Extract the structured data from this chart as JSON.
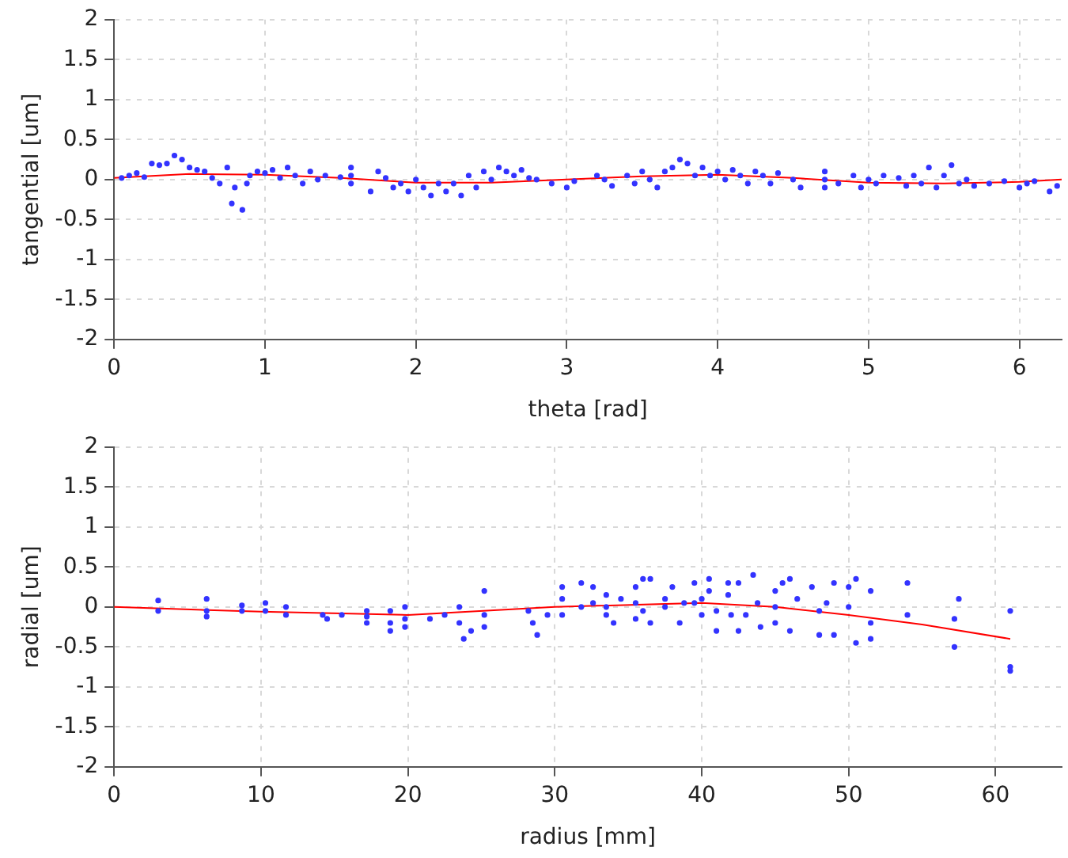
{
  "chart_data": [
    {
      "type": "scatter",
      "xlabel": "theta [rad]",
      "ylabel": "tangential [um]",
      "xlim": [
        0,
        6.28
      ],
      "xticks": [
        0,
        1,
        2,
        3,
        4,
        5,
        6
      ],
      "ylim": [
        -2,
        2
      ],
      "yticks": [
        -2,
        -1.5,
        -1,
        -0.5,
        0,
        0.5,
        1,
        1.5,
        2
      ],
      "grid": true,
      "series": [
        {
          "color": "#3333ff",
          "marker": "circle",
          "x": [
            0.05,
            0.1,
            0.15,
            0.2,
            0.25,
            0.3,
            0.35,
            0.4,
            0.45,
            0.5,
            0.55,
            0.6,
            0.65,
            0.7,
            0.75,
            0.78,
            0.8,
            0.85,
            0.88,
            0.9,
            0.95,
            1.0,
            1.05,
            1.1,
            1.15,
            1.2,
            1.25,
            1.3,
            1.35,
            1.4,
            1.5,
            1.57,
            1.57,
            1.57,
            1.7,
            1.75,
            1.8,
            1.85,
            1.9,
            1.95,
            2.0,
            2.05,
            2.1,
            2.15,
            2.2,
            2.25,
            2.3,
            2.35,
            2.4,
            2.45,
            2.5,
            2.55,
            2.6,
            2.65,
            2.7,
            2.75,
            2.8,
            2.9,
            3.0,
            3.05,
            3.2,
            3.25,
            3.3,
            3.4,
            3.45,
            3.5,
            3.55,
            3.6,
            3.65,
            3.7,
            3.75,
            3.8,
            3.85,
            3.9,
            3.95,
            4.0,
            4.05,
            4.1,
            4.15,
            4.2,
            4.25,
            4.3,
            4.35,
            4.4,
            4.5,
            4.55,
            4.71,
            4.71,
            4.71,
            4.8,
            4.9,
            4.95,
            5.0,
            5.05,
            5.1,
            5.2,
            5.25,
            5.3,
            5.35,
            5.4,
            5.45,
            5.5,
            5.55,
            5.6,
            5.65,
            5.7,
            5.8,
            5.9,
            6.0,
            6.05,
            6.1,
            6.2,
            6.25
          ],
          "values": [
            0.02,
            0.05,
            0.08,
            0.03,
            0.2,
            0.18,
            0.2,
            0.3,
            0.25,
            0.15,
            0.12,
            0.1,
            0.02,
            -0.05,
            0.15,
            -0.3,
            -0.1,
            -0.38,
            -0.05,
            0.05,
            0.1,
            0.08,
            0.12,
            0.02,
            0.15,
            0.05,
            -0.05,
            0.1,
            0.0,
            0.05,
            0.03,
            0.15,
            0.05,
            -0.05,
            -0.15,
            0.1,
            0.02,
            -0.1,
            -0.05,
            -0.15,
            0.0,
            -0.1,
            -0.2,
            -0.05,
            -0.15,
            -0.05,
            -0.2,
            0.05,
            -0.1,
            0.1,
            0.0,
            0.15,
            0.1,
            0.05,
            0.12,
            0.02,
            0.0,
            -0.05,
            -0.1,
            -0.02,
            0.05,
            0.0,
            -0.08,
            0.05,
            -0.05,
            0.1,
            0.0,
            -0.1,
            0.1,
            0.15,
            0.25,
            0.2,
            0.05,
            0.15,
            0.05,
            0.1,
            0.0,
            0.12,
            0.05,
            -0.05,
            0.1,
            0.05,
            -0.05,
            0.08,
            0.0,
            -0.1,
            0.1,
            0.0,
            -0.1,
            -0.05,
            0.05,
            -0.1,
            0.0,
            -0.05,
            0.05,
            0.02,
            -0.08,
            0.05,
            -0.05,
            0.15,
            -0.1,
            0.05,
            0.18,
            -0.05,
            0.0,
            -0.08,
            -0.05,
            -0.02,
            -0.1,
            -0.05,
            -0.02,
            -0.15,
            -0.08
          ]
        },
        {
          "type": "line",
          "color": "#ff0000",
          "marker": "none",
          "x": [
            0,
            0.5,
            1,
            1.5,
            2,
            2.5,
            3,
            3.5,
            4,
            4.5,
            5,
            5.5,
            6,
            6.28
          ],
          "values": [
            0.02,
            0.07,
            0.06,
            0.02,
            -0.04,
            -0.04,
            0.0,
            0.04,
            0.06,
            0.02,
            -0.04,
            -0.05,
            -0.03,
            0.0
          ]
        }
      ]
    },
    {
      "type": "scatter",
      "xlabel": "radius [mm]",
      "ylabel": "radial [um]",
      "xlim": [
        0,
        64.5
      ],
      "xticks": [
        0,
        10,
        20,
        30,
        40,
        50,
        60
      ],
      "ylim": [
        -2,
        2
      ],
      "yticks": [
        -2,
        -1.5,
        -1,
        -0.5,
        0,
        0.5,
        1,
        1.5,
        2
      ],
      "grid": true,
      "series": [
        {
          "color": "#3333ff",
          "marker": "circle",
          "x": [
            3,
            3,
            6.3,
            6.3,
            6.3,
            8.7,
            8.7,
            10.3,
            10.3,
            11.7,
            11.7,
            14.2,
            14.5,
            15.5,
            17.2,
            17.2,
            17.2,
            18.8,
            18.8,
            18.8,
            19.8,
            19.8,
            19.8,
            21.5,
            22.5,
            23.5,
            23.5,
            23.8,
            24.3,
            25.2,
            25.2,
            25.2,
            28.2,
            28.5,
            28.8,
            29.5,
            30.5,
            30.5,
            30.5,
            31.8,
            31.8,
            32.6,
            32.6,
            33.5,
            33.5,
            33.5,
            34,
            34.5,
            35.5,
            35.5,
            35.5,
            36,
            36,
            36.5,
            36.5,
            37.5,
            37.5,
            38,
            38.5,
            38.8,
            39.5,
            39.5,
            40,
            40,
            40.5,
            40.5,
            41,
            41,
            41.8,
            41.8,
            42,
            42.5,
            42.5,
            43,
            43.5,
            43.8,
            44,
            45,
            45,
            45,
            45.5,
            46,
            46,
            46.5,
            47.5,
            48,
            48,
            48.5,
            49,
            49,
            50,
            50,
            50.5,
            50.5,
            51.5,
            51.5,
            51.5,
            54,
            54,
            57.2,
            57.2,
            57.5,
            61,
            61,
            61
          ],
          "values": [
            0.08,
            -0.05,
            0.1,
            -0.05,
            -0.12,
            0.02,
            -0.05,
            0.05,
            -0.05,
            -0.1,
            0.0,
            -0.1,
            -0.15,
            -0.1,
            -0.05,
            -0.2,
            -0.12,
            -0.05,
            -0.2,
            -0.3,
            0.0,
            -0.15,
            -0.25,
            -0.15,
            -0.1,
            0.0,
            -0.2,
            -0.4,
            -0.3,
            0.2,
            -0.1,
            -0.25,
            -0.05,
            -0.2,
            -0.35,
            -0.1,
            0.25,
            0.1,
            -0.1,
            0.3,
            0.0,
            0.25,
            0.05,
            0.15,
            -0.1,
            0.0,
            -0.2,
            0.1,
            0.25,
            0.05,
            -0.15,
            0.35,
            -0.05,
            0.35,
            -0.2,
            0.1,
            0.0,
            0.25,
            -0.2,
            0.05,
            0.3,
            0.05,
            0.1,
            -0.1,
            0.35,
            0.2,
            -0.05,
            -0.3,
            0.3,
            0.15,
            -0.1,
            0.3,
            -0.3,
            -0.1,
            0.4,
            0.05,
            -0.25,
            0.2,
            0.0,
            -0.2,
            0.3,
            0.35,
            -0.3,
            0.1,
            0.25,
            -0.05,
            -0.35,
            0.05,
            0.3,
            -0.35,
            0.25,
            0.0,
            0.35,
            -0.45,
            0.2,
            -0.2,
            -0.4,
            0.3,
            -0.1,
            -0.5,
            -0.15,
            0.1,
            -0.05,
            -0.75,
            -0.8
          ]
        },
        {
          "type": "line",
          "color": "#ff0000",
          "marker": "none",
          "x": [
            0,
            10,
            20,
            30,
            40,
            45,
            50,
            55,
            61
          ],
          "values": [
            0.0,
            -0.06,
            -0.1,
            0.0,
            0.05,
            0.0,
            -0.1,
            -0.22,
            -0.4
          ]
        }
      ]
    }
  ]
}
